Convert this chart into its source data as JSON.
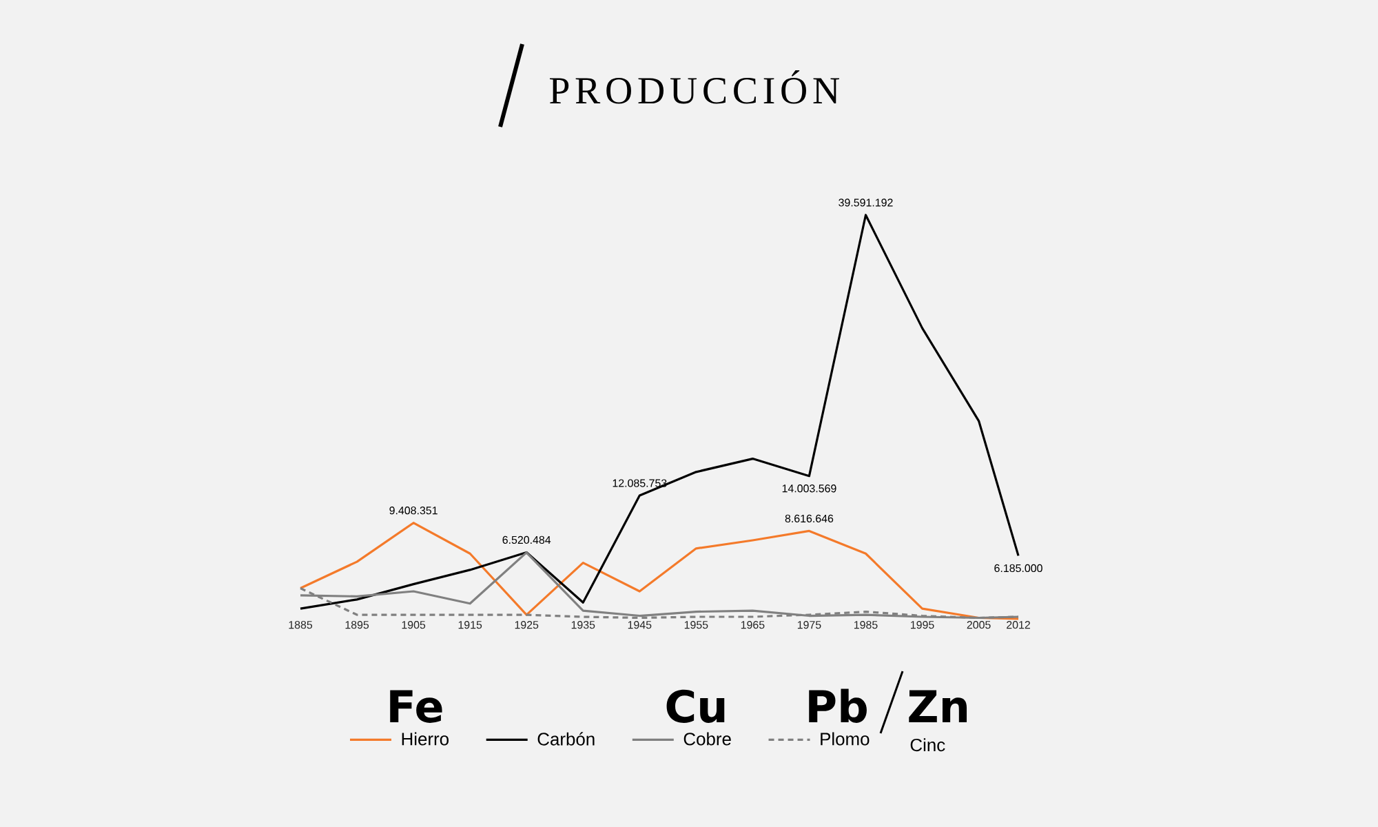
{
  "chart_data": {
    "type": "line",
    "title": "PRODUCCIÓN",
    "x": [
      1885,
      1895,
      1905,
      1915,
      1925,
      1935,
      1945,
      1955,
      1965,
      1975,
      1985,
      1995,
      2005,
      2012
    ],
    "xlim": [
      1885,
      2012
    ],
    "xticks": [
      1885,
      1895,
      1905,
      1915,
      1925,
      1935,
      1945,
      1955,
      1965,
      1975,
      1985,
      1995,
      2005,
      2012
    ],
    "tick_labels": "x",
    "grid": false,
    "legend": "bottom",
    "annotations": [
      "Fe",
      "Cu",
      "Pb",
      "Zn",
      "Cinc"
    ],
    "series": [
      {
        "name": "Hierro",
        "color": "#f47a2a",
        "line_style": "solid",
        "values": [
          3000000,
          5600000,
          9408351,
          6400000,
          400000,
          5500000,
          2700000,
          6900000,
          7700000,
          8616646,
          6400000,
          1000000,
          100000,
          0
        ],
        "value_labels": [
          null,
          null,
          "9.408.351",
          null,
          null,
          null,
          null,
          null,
          null,
          "8.616.646",
          null,
          null,
          null,
          null
        ]
      },
      {
        "name": "Carbón",
        "color": "#000000",
        "line_style": "solid",
        "values": [
          1000000,
          1900000,
          3400000,
          4800000,
          6520484,
          1600000,
          12085753,
          14400000,
          15700000,
          14003569,
          39591192,
          28500000,
          19400000,
          6185000
        ],
        "value_labels": [
          null,
          null,
          null,
          null,
          "6.520.484",
          null,
          "12.085.753",
          null,
          null,
          "14.003.569",
          "39.591.192",
          null,
          null,
          "6.185.000"
        ]
      },
      {
        "name": "Cobre",
        "color": "#808080",
        "line_style": "solid",
        "values": [
          2300000,
          2200000,
          2700000,
          1500000,
          6500000,
          800000,
          300000,
          700000,
          800000,
          300000,
          400000,
          200000,
          100000,
          200000
        ]
      },
      {
        "name": "Plomo",
        "color": "#808080",
        "line_style": "dashed",
        "values": [
          3000000,
          400000,
          400000,
          400000,
          400000,
          200000,
          100000,
          200000,
          200000,
          400000,
          700000,
          300000,
          100000,
          200000
        ]
      }
    ]
  }
}
